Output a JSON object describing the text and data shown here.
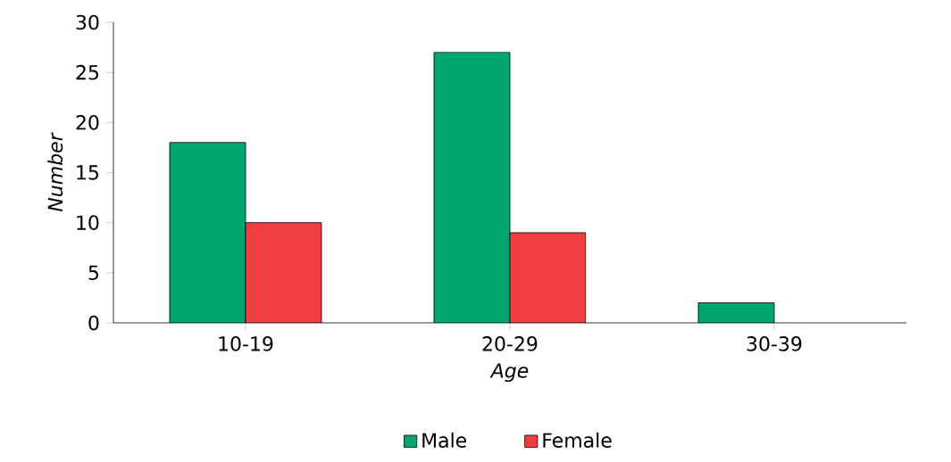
{
  "chart_data": {
    "type": "bar",
    "xlabel": "Age",
    "ylabel": "Number",
    "categories": [
      "10-19",
      "20-29",
      "30-39"
    ],
    "series": [
      {
        "name": "Male",
        "color": "#00a870",
        "values": [
          18,
          27,
          2
        ]
      },
      {
        "name": "Female",
        "color": "#ef3e42",
        "values": [
          10,
          9,
          null
        ]
      }
    ],
    "ylim": [
      0,
      30
    ],
    "yticks": [
      0,
      5,
      10,
      15,
      20,
      25,
      30
    ],
    "legend": "bottom"
  }
}
